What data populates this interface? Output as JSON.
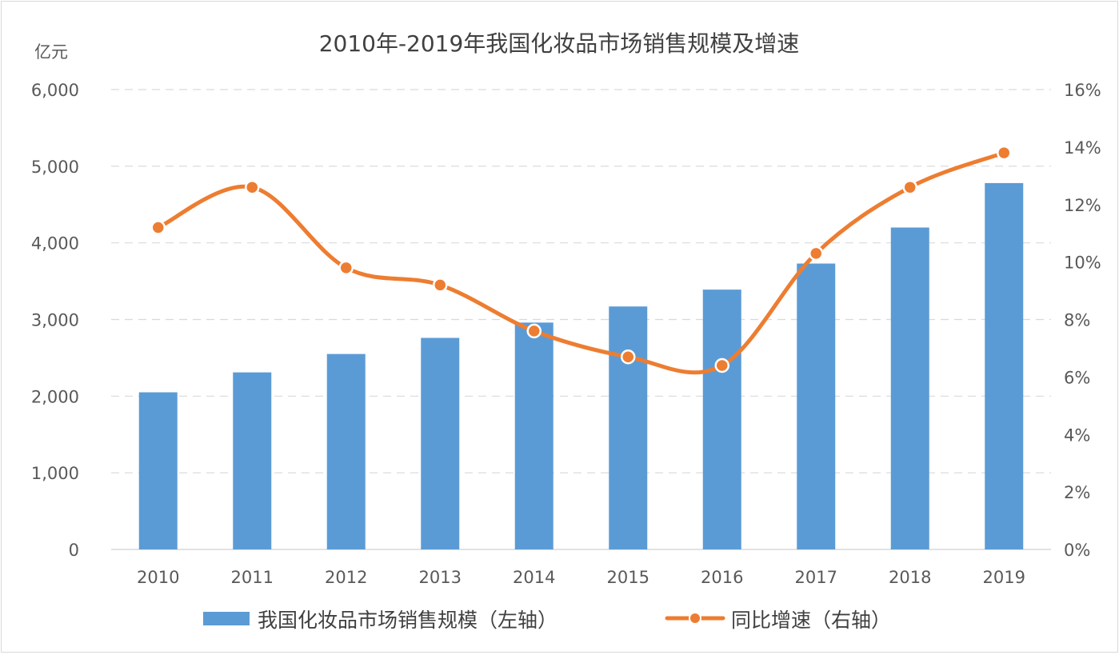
{
  "chart_data": {
    "type": "bar",
    "title": "2010年-2019年我国化妆品市场销售规模及增速",
    "ylabel": "亿元",
    "categories": [
      "2010",
      "2011",
      "2012",
      "2013",
      "2014",
      "2015",
      "2016",
      "2017",
      "2018",
      "2019"
    ],
    "series": [
      {
        "name": "我国化妆品市场销售规模（左轴）",
        "type": "bar",
        "axis": "left",
        "color": "#5b9bd5",
        "values": [
          2050,
          2310,
          2550,
          2760,
          2960,
          3170,
          3390,
          3730,
          4200,
          4780
        ]
      },
      {
        "name": "同比增速（右轴）",
        "type": "line",
        "axis": "right",
        "color": "#ed7d31",
        "values": [
          11.2,
          12.6,
          9.8,
          9.2,
          7.6,
          6.7,
          6.4,
          10.3,
          12.6,
          13.8
        ]
      }
    ],
    "y_left": {
      "min": 0,
      "max": 6000,
      "ticks": [
        "0",
        "1,000",
        "2,000",
        "3,000",
        "4,000",
        "5,000",
        "6,000"
      ]
    },
    "y_right": {
      "min": 0,
      "max": 16,
      "ticks": [
        "0%",
        "2%",
        "4%",
        "6%",
        "8%",
        "10%",
        "12%",
        "14%",
        "16%"
      ]
    },
    "grid": true,
    "legend_position": "bottom"
  }
}
